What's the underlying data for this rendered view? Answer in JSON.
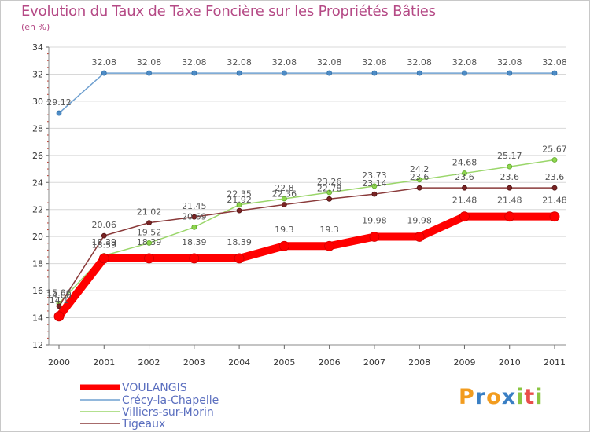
{
  "title": "Evolution du Taux de Taxe Foncière sur les Propriétés Bâties",
  "unit_label": "(en %)",
  "logo": {
    "letters": [
      "P",
      "r",
      "o",
      "x",
      "i",
      "t",
      "i"
    ],
    "colors": [
      "#f29c1f",
      "#3a7fc4",
      "#f29c1f",
      "#3a7fc4",
      "#8ac541",
      "#e94e4b",
      "#8ac541"
    ]
  },
  "chart_data": {
    "type": "line",
    "title": "Evolution du Taux de Taxe Foncière sur les Propriétés Bâties",
    "ylabel": "(en %)",
    "xlabel": "",
    "ylim": [
      12,
      34
    ],
    "yticks": [
      12,
      14,
      16,
      18,
      20,
      22,
      24,
      26,
      28,
      30,
      32,
      34
    ],
    "categories": [
      "2000",
      "2001",
      "2002",
      "2003",
      "2004",
      "2005",
      "2006",
      "2007",
      "2008",
      "2009",
      "2010",
      "2011"
    ],
    "series": [
      {
        "name": "VOULANGIS",
        "color": "#ff0000",
        "values": [
          14.1,
          18.39,
          18.39,
          18.39,
          18.39,
          19.3,
          19.3,
          19.98,
          19.98,
          21.48,
          21.48,
          21.48
        ],
        "labels": [
          "14.1",
          "18.39",
          "18.39",
          "18.39",
          "18.39",
          "19.3",
          "19.3",
          "19.98",
          "19.98",
          "21.48",
          "21.48",
          "21.48"
        ]
      },
      {
        "name": "Crécy-la-Chapelle",
        "color": "#6fa0d0",
        "values": [
          29.12,
          32.08,
          32.08,
          32.08,
          32.08,
          32.08,
          32.08,
          32.08,
          32.08,
          32.08,
          32.08,
          32.08
        ],
        "labels": [
          "29.12",
          "32.08",
          "32.08",
          "32.08",
          "32.08",
          "32.08",
          "32.08",
          "32.08",
          "32.08",
          "32.08",
          "32.08",
          "32.08"
        ]
      },
      {
        "name": "Villiers-sur-Morin",
        "color": "#9ad66a",
        "values": [
          15.06,
          18.59,
          19.52,
          20.69,
          22.35,
          22.8,
          23.26,
          23.73,
          24.2,
          24.68,
          25.17,
          25.67
        ],
        "labels": [
          "15.06",
          "18.59",
          "19.52",
          "20.69",
          "22.35",
          "22.8",
          "23.26",
          "23.73",
          "24.2",
          "24.68",
          "25.17",
          "25.67"
        ]
      },
      {
        "name": "Tigeaux",
        "color": "#8a3a3a",
        "values": [
          14.86,
          20.06,
          21.02,
          21.45,
          21.92,
          22.36,
          22.78,
          23.14,
          23.6,
          23.6,
          23.6,
          23.6
        ],
        "labels": [
          "14.86",
          "20.06",
          "21.02",
          "21.45",
          "21.92",
          "22.36",
          "22.78",
          "23.14",
          "23.6",
          "23.6",
          "23.6",
          "23.6"
        ]
      }
    ]
  }
}
